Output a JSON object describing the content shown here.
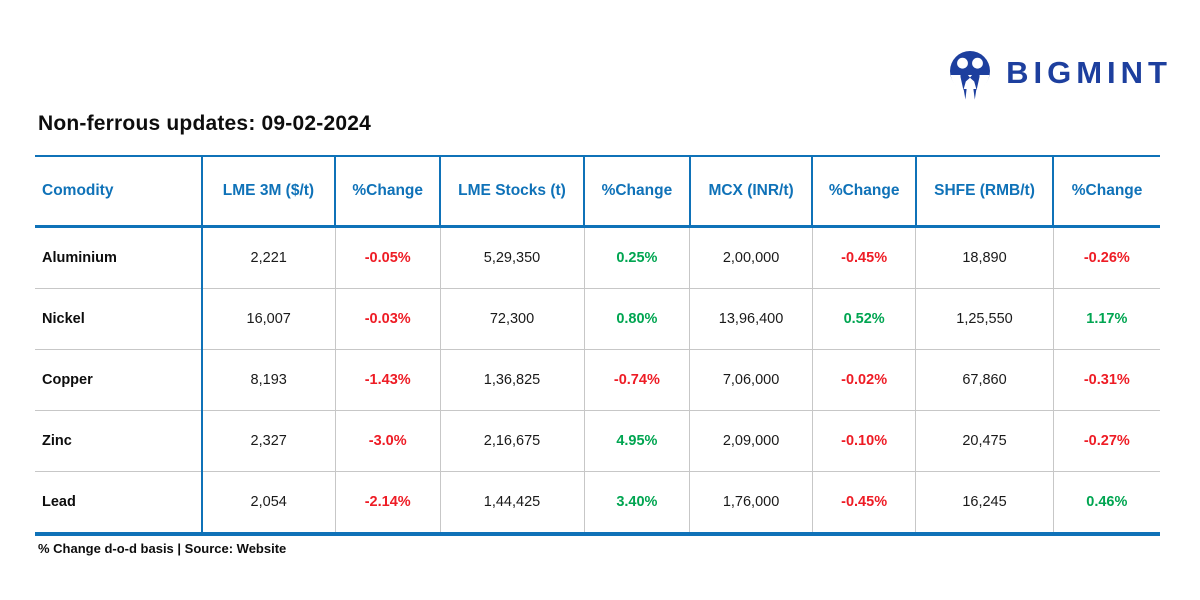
{
  "logo": {
    "brand": "BIGMINT"
  },
  "title": "Non-ferrous updates: 09-02-2024",
  "footer": "% Change d-o-d basis | Source: Website",
  "colors": {
    "table_blue": "#0f72b8",
    "logo_navy": "#1d3f9e",
    "positive_green": "#00a551",
    "negative_red": "#ee1c25",
    "grid_gray": "#c7c7c7"
  },
  "table": {
    "columns": [
      "Comodity",
      "LME 3M ($/t)",
      "%Change",
      "LME Stocks (t)",
      "%Change",
      "MCX (INR/t)",
      "%Change",
      "SHFE (RMB/t)",
      "%Change"
    ],
    "change_column_indexes": [
      2,
      4,
      6,
      8
    ],
    "column_widths_pct": [
      14.8,
      11.9,
      9.3,
      12.8,
      9.4,
      10.9,
      9.2,
      12.2,
      9.5
    ],
    "rows": [
      [
        "Aluminium",
        "2,221",
        "-0.05%",
        "5,29,350",
        "0.25%",
        "2,00,000",
        "-0.45%",
        "18,890",
        "-0.26%"
      ],
      [
        "Nickel",
        "16,007",
        "-0.03%",
        "72,300",
        "0.80%",
        "13,96,400",
        "0.52%",
        "1,25,550",
        "1.17%"
      ],
      [
        "Copper",
        "8,193",
        "-1.43%",
        "1,36,825",
        "-0.74%",
        "7,06,000",
        "-0.02%",
        "67,860",
        "-0.31%"
      ],
      [
        "Zinc",
        "2,327",
        "-3.0%",
        "2,16,675",
        "4.95%",
        "2,09,000",
        "-0.10%",
        "20,475",
        "-0.27%"
      ],
      [
        "Lead",
        "2,054",
        "-2.14%",
        "1,44,425",
        "3.40%",
        "1,76,000",
        "-0.45%",
        "16,245",
        "0.46%"
      ]
    ]
  }
}
